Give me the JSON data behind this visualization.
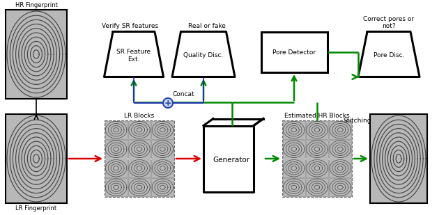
{
  "bg_color": "#ffffff",
  "hr_fp_label": "HR Fingerprint",
  "lr_fp_label": "LR Fingerprint",
  "lr_blocks_label": "LR Blocks",
  "est_hr_blocks_label": "Estimated HR Blocks",
  "generator_label": "Generator",
  "stitching_label": "Stitching",
  "verify_label": "Verify SR features",
  "real_fake_label": "Real or fake",
  "correct_pores_label": "Correct pores or\nnot?",
  "concat_label": "Concat",
  "sr_feature_label": "SR Feature\nExt.",
  "quality_disc_label": "Quality Disc.",
  "pore_detector_label": "Pore Detector",
  "pore_disc_label": "Pore Disc.",
  "arrow_red": "#dd0000",
  "arrow_green": "#008800",
  "arrow_black": "#000000",
  "arrow_blue": "#2222cc",
  "trap_fill": "#ffffff",
  "trap_edge": "#000000",
  "rect_fill": "#ffffff",
  "rect_edge": "#000000",
  "circle_fill": "#ccd8ee",
  "circle_edge": "#2244aa"
}
